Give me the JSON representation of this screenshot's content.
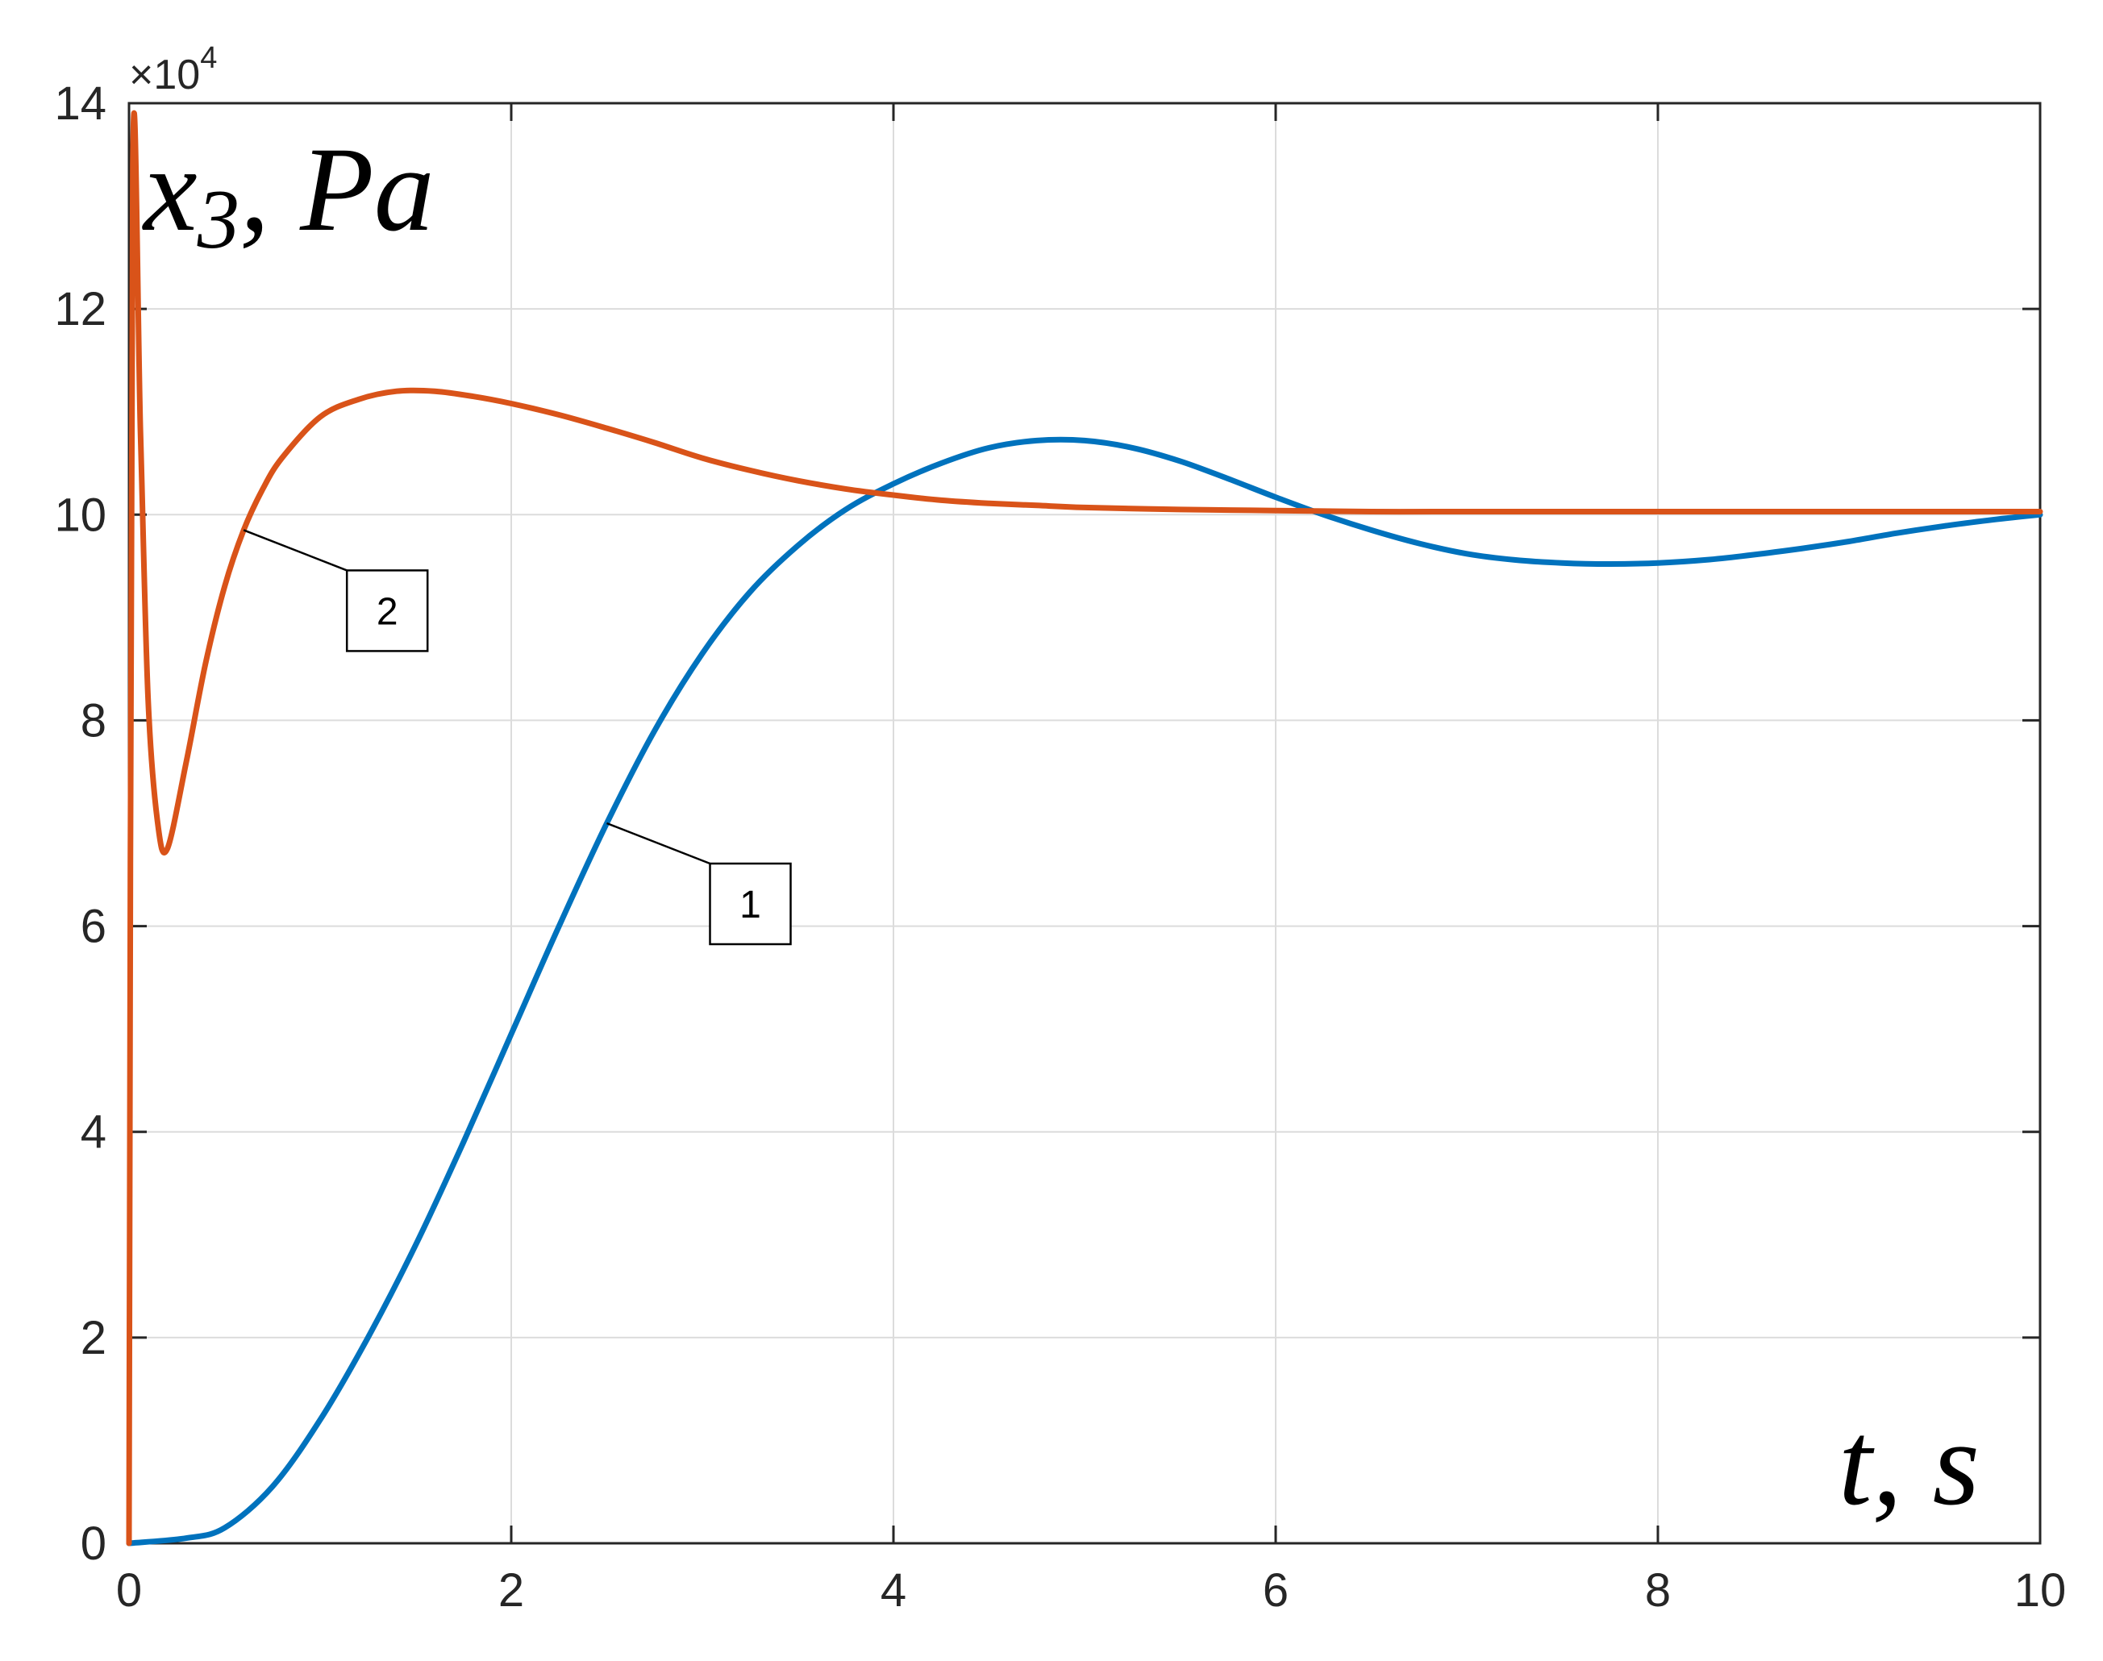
{
  "chart_data": {
    "type": "line",
    "xlabel": "t, s",
    "ylabel": "x3, Pa",
    "ylabel_parts": {
      "main": "x",
      "sub": "3",
      "rest": ", Pa"
    },
    "y_exponent": {
      "base": "×10",
      "power": "4"
    },
    "xlim": [
      0,
      10
    ],
    "ylim": [
      0,
      14
    ],
    "xticks": [
      0,
      2,
      4,
      6,
      8,
      10
    ],
    "yticks": [
      0,
      2,
      4,
      6,
      8,
      10,
      12,
      14
    ],
    "grid": true,
    "series": [
      {
        "label": "1",
        "color": "#0072BD",
        "x": [
          0,
          0.3,
          0.5,
          0.75,
          1.0,
          1.25,
          1.5,
          1.75,
          2.0,
          2.25,
          2.5,
          2.75,
          3.0,
          3.25,
          3.5,
          3.75,
          4.0,
          4.25,
          4.5,
          4.75,
          5.0,
          5.25,
          5.5,
          5.75,
          6.0,
          6.25,
          6.5,
          6.75,
          7.0,
          7.25,
          7.5,
          7.75,
          8.0,
          8.25,
          8.5,
          8.75,
          9.0,
          9.25,
          9.5,
          9.75,
          10.0
        ],
        "y": [
          0,
          0.05,
          0.15,
          0.55,
          1.2,
          2.0,
          2.9,
          3.9,
          4.95,
          6.0,
          7.0,
          7.9,
          8.65,
          9.25,
          9.7,
          10.05,
          10.3,
          10.5,
          10.65,
          10.72,
          10.72,
          10.65,
          10.52,
          10.35,
          10.17,
          10.0,
          9.85,
          9.72,
          9.62,
          9.56,
          9.53,
          9.52,
          9.53,
          9.56,
          9.61,
          9.67,
          9.74,
          9.82,
          9.89,
          9.95,
          10.0
        ]
      },
      {
        "label": "2",
        "color": "#D95319",
        "x": [
          0,
          0.02,
          0.06,
          0.1,
          0.15,
          0.2,
          0.3,
          0.4,
          0.5,
          0.6,
          0.7,
          0.8,
          1.0,
          1.2,
          1.4,
          1.6,
          1.8,
          2.0,
          2.25,
          2.5,
          2.75,
          3.0,
          3.25,
          3.5,
          3.75,
          4.0,
          4.25,
          4.5,
          4.75,
          5.0,
          5.5,
          6.0,
          6.5,
          7.0,
          8.0,
          9.0,
          10.0
        ],
        "y": [
          0,
          13.4,
          10.8,
          8.2,
          7.0,
          6.75,
          7.6,
          8.55,
          9.3,
          9.85,
          10.25,
          10.55,
          10.95,
          11.12,
          11.2,
          11.2,
          11.15,
          11.08,
          10.97,
          10.84,
          10.7,
          10.55,
          10.43,
          10.33,
          10.25,
          10.19,
          10.14,
          10.11,
          10.09,
          10.07,
          10.05,
          10.04,
          10.03,
          10.03,
          10.03,
          10.03,
          10.03
        ]
      }
    ],
    "callouts": [
      {
        "text": "1",
        "series": 0,
        "anchor_x": 2.5
      },
      {
        "text": "2",
        "series": 1,
        "anchor_x": 0.6
      }
    ]
  }
}
